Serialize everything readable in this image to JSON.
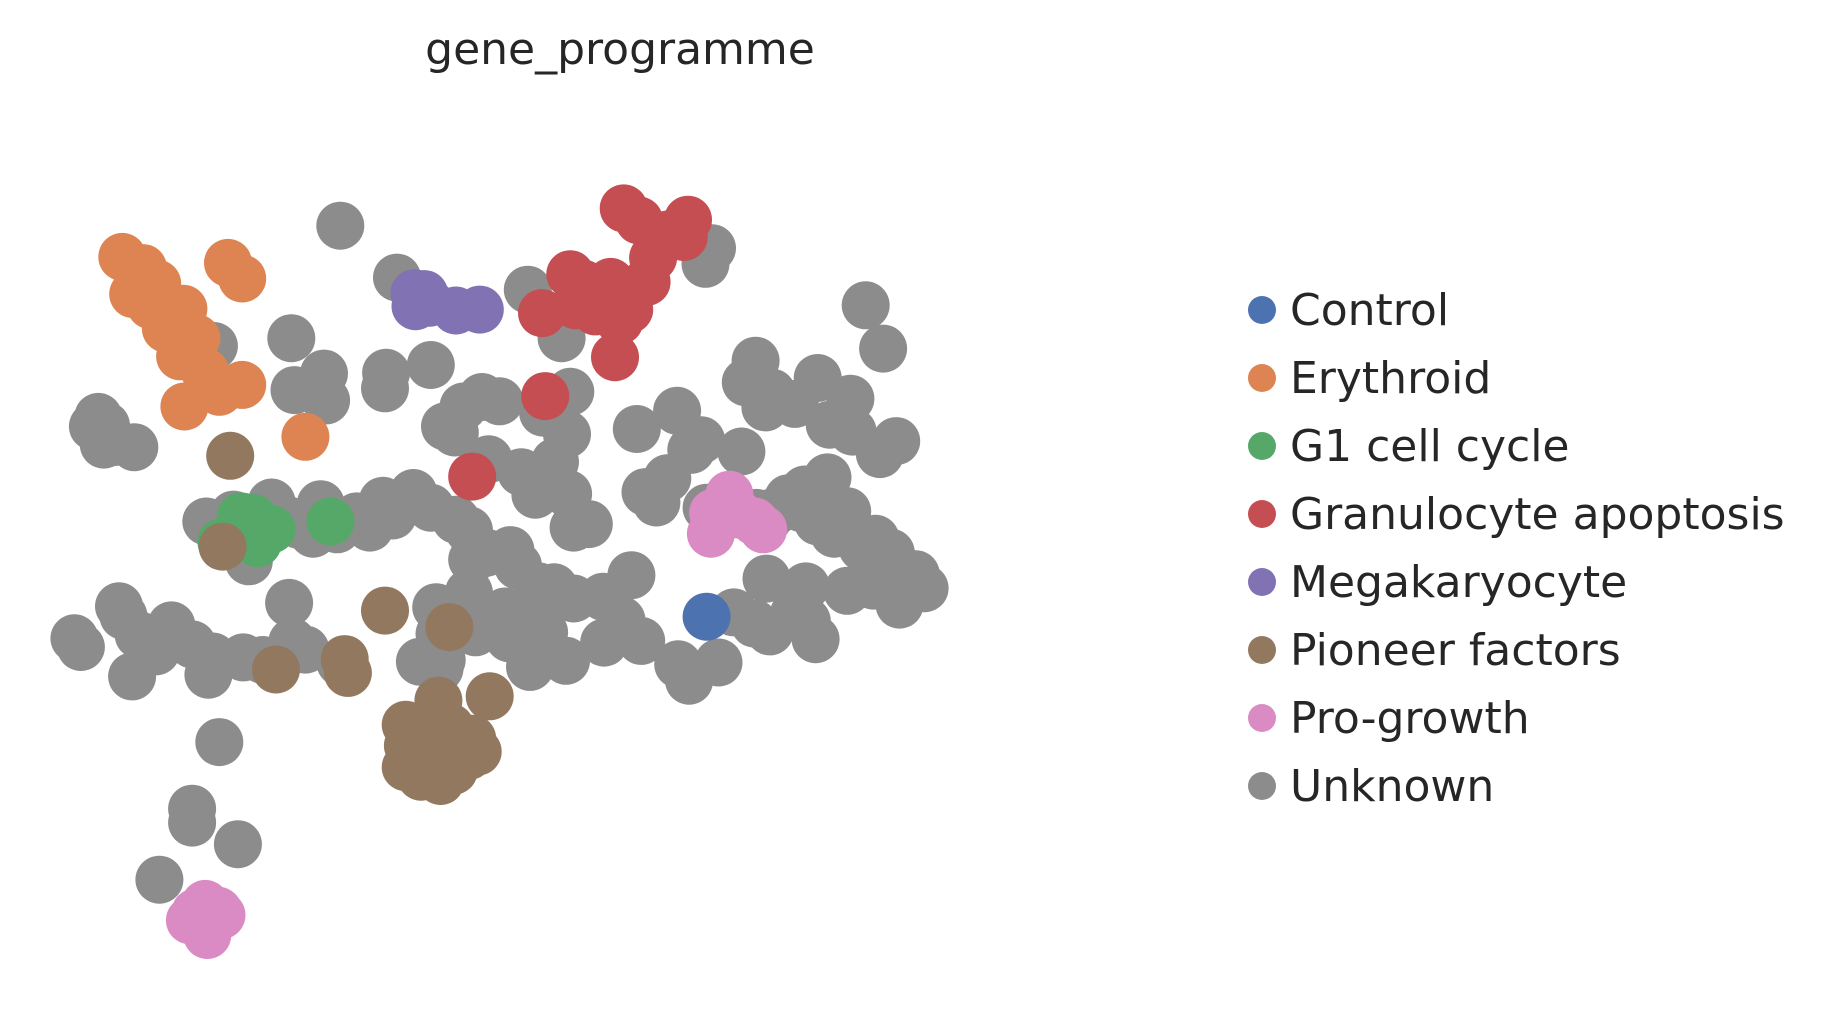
{
  "chart_data": {
    "type": "scatter",
    "title": "gene_programme",
    "xlabel": "",
    "ylabel": "",
    "grid": false,
    "axes_visible": false,
    "legend_placement": "right",
    "xlim": [
      0,
      100
    ],
    "ylim": [
      0,
      100
    ],
    "colors": {
      "Control": "#4c72b0",
      "Erythroid": "#dd8452",
      "G1 cell cycle": "#55a868",
      "Granulocyte apoptosis": "#c44e52",
      "Megakaryocyte": "#8172b3",
      "Pioneer factors": "#937860",
      "Pro-growth": "#da8bc3",
      "Unknown": "#8c8c8c"
    },
    "legend": [
      "Control",
      "Erythroid",
      "G1 cell cycle",
      "Granulocyte apoptosis",
      "Megakaryocyte",
      "Pioneer factors",
      "Pro-growth",
      "Unknown"
    ],
    "series": [
      {
        "name": "Unknown",
        "points": [
          [
            24.8,
            87.2
          ],
          [
            30.0,
            81.2
          ],
          [
            42.0,
            79.8
          ],
          [
            45.1,
            74.2
          ],
          [
            47.7,
            78.0
          ],
          [
            20.3,
            74.2
          ],
          [
            13.2,
            73.3
          ],
          [
            23.3,
            70.1
          ],
          [
            45.6,
            63.1
          ],
          [
            45.7,
            56.2
          ],
          [
            52.0,
            63.7
          ],
          [
            55.7,
            65.8
          ],
          [
            57.0,
            61.3
          ],
          [
            57.9,
            62.4
          ],
          [
            61.6,
            61.1
          ],
          [
            62.9,
            71.6
          ],
          [
            62.0,
            69.1
          ],
          [
            64.4,
            67.9
          ],
          [
            66.5,
            66.6
          ],
          [
            68.6,
            69.6
          ],
          [
            69.7,
            64.2
          ],
          [
            71.6,
            67.2
          ],
          [
            71.8,
            63.4
          ],
          [
            63.8,
            66.2
          ],
          [
            58.9,
            84.6
          ],
          [
            58.3,
            82.8
          ],
          [
            73.0,
            78.0
          ],
          [
            74.6,
            73.0
          ],
          [
            74.3,
            60.8
          ],
          [
            75.8,
            62.3
          ],
          [
            69.5,
            58.1
          ],
          [
            67.4,
            56.7
          ],
          [
            2.6,
            65.1
          ],
          [
            2.1,
            64.0
          ],
          [
            3.3,
            64.1
          ],
          [
            3.1,
            61.9
          ],
          [
            4.1,
            62.2
          ],
          [
            5.9,
            61.6
          ],
          [
            20.6,
            68.2
          ],
          [
            23.5,
            67.0
          ],
          [
            29.0,
            70.2
          ],
          [
            28.9,
            68.4
          ],
          [
            33.1,
            71.1
          ],
          [
            36.1,
            66.3
          ],
          [
            37.8,
            67.4
          ],
          [
            39.4,
            66.9
          ],
          [
            45.9,
            68.0
          ],
          [
            43.4,
            65.6
          ],
          [
            34.4,
            64.0
          ],
          [
            35.3,
            63.3
          ],
          [
            38.4,
            60.2
          ],
          [
            41.4,
            58.7
          ],
          [
            42.7,
            56.1
          ],
          [
            44.5,
            59.9
          ],
          [
            43.8,
            57.6
          ],
          [
            46.2,
            52.3
          ],
          [
            52.8,
            56.4
          ],
          [
            53.8,
            55.2
          ],
          [
            54.8,
            58.0
          ],
          [
            58.4,
            54.6
          ],
          [
            60.2,
            55.2
          ],
          [
            63.0,
            54.0
          ],
          [
            64.0,
            53.2
          ],
          [
            65.0,
            54.4
          ],
          [
            65.9,
            55.7
          ],
          [
            67.2,
            54.5
          ],
          [
            68.6,
            53.0
          ],
          [
            69.4,
            52.8
          ],
          [
            70.1,
            51.6
          ],
          [
            71.3,
            54.2
          ],
          [
            72.7,
            50.0
          ],
          [
            73.9,
            51.0
          ],
          [
            75.3,
            49.4
          ],
          [
            76.6,
            46.7
          ],
          [
            77.6,
            46.9
          ],
          [
            73.7,
            45.6
          ],
          [
            75.6,
            46.3
          ],
          [
            78.4,
            45.3
          ],
          [
            76.1,
            43.4
          ],
          [
            71.3,
            45.0
          ],
          [
            67.5,
            45.5
          ],
          [
            63.9,
            46.4
          ],
          [
            60.9,
            42.5
          ],
          [
            62.8,
            41.2
          ],
          [
            64.2,
            40.3
          ],
          [
            66.4,
            42.3
          ],
          [
            67.6,
            41.5
          ],
          [
            68.4,
            39.4
          ],
          [
            12.5,
            53.0
          ],
          [
            13.8,
            51.6
          ],
          [
            15.0,
            53.8
          ],
          [
            16.4,
            52.3
          ],
          [
            18.5,
            55.2
          ],
          [
            19.9,
            53.2
          ],
          [
            21.0,
            52.6
          ],
          [
            22.3,
            51.6
          ],
          [
            23.0,
            55.0
          ],
          [
            24.5,
            52.1
          ],
          [
            26.3,
            53.6
          ],
          [
            27.5,
            52.3
          ],
          [
            28.7,
            55.4
          ],
          [
            29.6,
            53.7
          ],
          [
            31.5,
            56.3
          ],
          [
            33.1,
            54.6
          ],
          [
            35.4,
            53.2
          ],
          [
            36.6,
            52.0
          ],
          [
            38.2,
            49.4
          ],
          [
            40.4,
            49.7
          ],
          [
            41.1,
            47.9
          ],
          [
            43.0,
            45.5
          ],
          [
            44.4,
            45.4
          ],
          [
            46.2,
            44.1
          ],
          [
            48.9,
            44.3
          ],
          [
            50.6,
            41.6
          ],
          [
            51.5,
            46.8
          ],
          [
            47.6,
            52.7
          ],
          [
            36.9,
            48.6
          ],
          [
            33.6,
            43.1
          ],
          [
            33.9,
            40.0
          ],
          [
            34.1,
            37.0
          ],
          [
            33.9,
            36.0
          ],
          [
            37.2,
            40.2
          ],
          [
            40.3,
            39.5
          ],
          [
            42.2,
            36.2
          ],
          [
            45.5,
            36.9
          ],
          [
            49.0,
            39.0
          ],
          [
            52.4,
            39.2
          ],
          [
            55.8,
            36.5
          ],
          [
            56.8,
            34.6
          ],
          [
            59.5,
            36.7
          ],
          [
            24.8,
            36.7
          ],
          [
            20.1,
            43.6
          ],
          [
            16.4,
            48.4
          ],
          [
            9.3,
            41.0
          ],
          [
            8.1,
            39.3
          ],
          [
            7.9,
            38.0
          ],
          [
            11.2,
            38.8
          ],
          [
            13.1,
            37.4
          ],
          [
            15.9,
            37.3
          ],
          [
            17.7,
            37.0
          ],
          [
            20.4,
            39.1
          ],
          [
            21.6,
            38.2
          ],
          [
            12.7,
            35.3
          ],
          [
            4.5,
            43.2
          ],
          [
            4.9,
            42.1
          ],
          [
            6.3,
            39.9
          ],
          [
            7.0,
            38.9
          ],
          [
            0.4,
            39.5
          ],
          [
            1.0,
            38.5
          ],
          [
            5.7,
            35.1
          ],
          [
            13.7,
            27.5
          ],
          [
            11.2,
            19.8
          ],
          [
            11.2,
            18.2
          ],
          [
            15.4,
            15.7
          ],
          [
            8.2,
            11.6
          ],
          [
            32.1,
            36.8
          ],
          [
            36.6,
            44.8
          ],
          [
            39.9,
            42.6
          ],
          [
            41.1,
            41.4
          ],
          [
            43.5,
            40.2
          ]
        ]
      },
      {
        "name": "Erythroid",
        "points": [
          [
            4.8,
            83.6
          ],
          [
            6.7,
            82.3
          ],
          [
            8.0,
            80.5
          ],
          [
            5.8,
            79.3
          ],
          [
            7.4,
            78.0
          ],
          [
            9.2,
            77.2
          ],
          [
            10.4,
            77.6
          ],
          [
            8.8,
            75.3
          ],
          [
            11.6,
            74.2
          ],
          [
            10.1,
            72.1
          ],
          [
            12.4,
            70.3
          ],
          [
            13.7,
            68.0
          ],
          [
            15.8,
            68.8
          ],
          [
            10.5,
            66.3
          ],
          [
            14.5,
            82.9
          ],
          [
            15.8,
            81.1
          ],
          [
            21.6,
            62.8
          ]
        ]
      },
      {
        "name": "G1 cell cycle",
        "points": [
          [
            14.8,
            51.2
          ],
          [
            16.3,
            51.8
          ],
          [
            17.2,
            50.5
          ],
          [
            13.9,
            50.6
          ],
          [
            15.7,
            53.6
          ],
          [
            16.8,
            53.4
          ],
          [
            18.5,
            52.1
          ],
          [
            23.9,
            53.0
          ]
        ]
      },
      {
        "name": "Granulocyte apoptosis",
        "points": [
          [
            50.8,
            89.2
          ],
          [
            52.2,
            87.8
          ],
          [
            53.5,
            83.5
          ],
          [
            54.9,
            86.2
          ],
          [
            52.9,
            80.7
          ],
          [
            56.7,
            87.9
          ],
          [
            56.3,
            85.9
          ],
          [
            45.9,
            81.6
          ],
          [
            47.1,
            80.5
          ],
          [
            48.6,
            79.4
          ],
          [
            49.6,
            80.7
          ],
          [
            51.3,
            77.5
          ],
          [
            43.3,
            77.1
          ],
          [
            46.4,
            78.0
          ],
          [
            48.2,
            77.3
          ],
          [
            50.4,
            76.2
          ],
          [
            50.0,
            72.0
          ],
          [
            43.6,
            67.5
          ],
          [
            36.9,
            58.2
          ]
        ]
      },
      {
        "name": "Megakaryocyte",
        "points": [
          [
            33.0,
            78.3
          ],
          [
            31.6,
            79.4
          ],
          [
            32.5,
            79.3
          ],
          [
            31.7,
            77.9
          ],
          [
            35.4,
            77.4
          ],
          [
            37.6,
            77.5
          ]
        ]
      },
      {
        "name": "Pioneer factors",
        "points": [
          [
            14.7,
            60.6
          ],
          [
            14.0,
            50.1
          ],
          [
            28.9,
            42.7
          ],
          [
            34.8,
            40.8
          ],
          [
            18.9,
            35.9
          ],
          [
            25.2,
            37.1
          ],
          [
            25.5,
            35.5
          ],
          [
            33.8,
            32.3
          ],
          [
            38.5,
            32.8
          ],
          [
            30.8,
            29.5
          ],
          [
            32.6,
            27.9
          ],
          [
            33.7,
            28.5
          ],
          [
            34.9,
            29.2
          ],
          [
            36.9,
            27.9
          ],
          [
            30.8,
            24.6
          ],
          [
            32.2,
            23.5
          ],
          [
            34.0,
            23.0
          ],
          [
            35.2,
            24.2
          ],
          [
            36.6,
            25.9
          ],
          [
            37.4,
            26.4
          ],
          [
            31.0,
            27.1
          ],
          [
            33.1,
            26.0
          ]
        ]
      },
      {
        "name": "Pro-growth",
        "points": [
          [
            59.0,
            54.0
          ],
          [
            60.5,
            56.1
          ],
          [
            61.4,
            53.8
          ],
          [
            62.8,
            53.0
          ],
          [
            63.6,
            52.1
          ],
          [
            58.8,
            51.6
          ],
          [
            11.5,
            7.8
          ],
          [
            12.4,
            8.8
          ],
          [
            13.6,
            8.0
          ],
          [
            12.3,
            6.4
          ],
          [
            12.6,
            5.2
          ],
          [
            11.0,
            6.9
          ],
          [
            12.7,
            7.9
          ],
          [
            13.9,
            7.5
          ]
        ]
      },
      {
        "name": "Control",
        "points": [
          [
            58.4,
            42.0
          ]
        ]
      }
    ]
  }
}
